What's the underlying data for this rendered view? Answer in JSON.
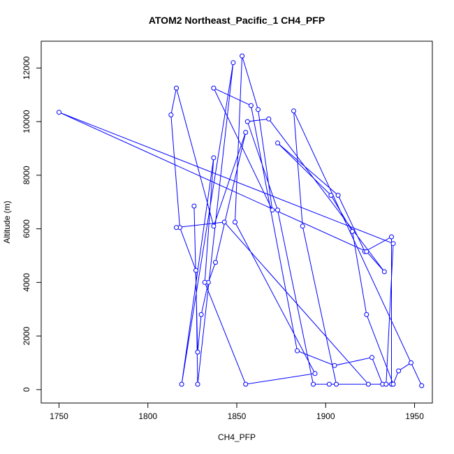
{
  "chart_data": {
    "type": "line",
    "title": "ATOM2 Northeast_Pacific_1 CH4_PFP",
    "xlabel": "CH4_PFP",
    "ylabel": "Altitude (m)",
    "xlim": [
      1740,
      1960
    ],
    "ylim": [
      -500,
      13000
    ],
    "xticks": [
      1750,
      1800,
      1850,
      1900,
      1950
    ],
    "yticks": [
      0,
      2000,
      4000,
      6000,
      8000,
      10000,
      12000
    ],
    "grid": false,
    "series": [
      {
        "name": "",
        "color": "#0000ff",
        "marker": "open-circle",
        "x": [
          1826,
          1828,
          1830,
          1834,
          1838,
          1855,
          1837,
          1816,
          1813,
          1818,
          1827,
          1828,
          1848,
          1819,
          1837,
          1832,
          1855,
          1894,
          1849,
          1853,
          1862,
          1870,
          1837,
          1858,
          1884,
          1905,
          1926,
          1932,
          1937,
          1937,
          1922,
          1907,
          1873,
          1903,
          1915,
          1923,
          1938,
          1941,
          1948,
          1954,
          1882,
          1887,
          1906,
          1934,
          1938,
          1750,
          1923,
          1933,
          1868,
          1856,
          1873,
          1893,
          1902,
          1924,
          1843,
          1816
        ],
        "y": [
          6850,
          1400,
          2800,
          4000,
          4750,
          9600,
          6100,
          11250,
          10250,
          6050,
          4450,
          200,
          12200,
          200,
          8650,
          4000,
          200,
          600,
          6250,
          12450,
          10450,
          6700,
          11250,
          10600,
          1450,
          900,
          1200,
          200,
          200,
          5700,
          5150,
          7250,
          9200,
          7250,
          5900,
          2800,
          200,
          700,
          1000,
          150,
          10400,
          6100,
          200,
          200,
          5450,
          10350,
          5150,
          4400,
          10100,
          10000,
          6700,
          200,
          200,
          200,
          6250,
          6050
        ]
      }
    ]
  }
}
